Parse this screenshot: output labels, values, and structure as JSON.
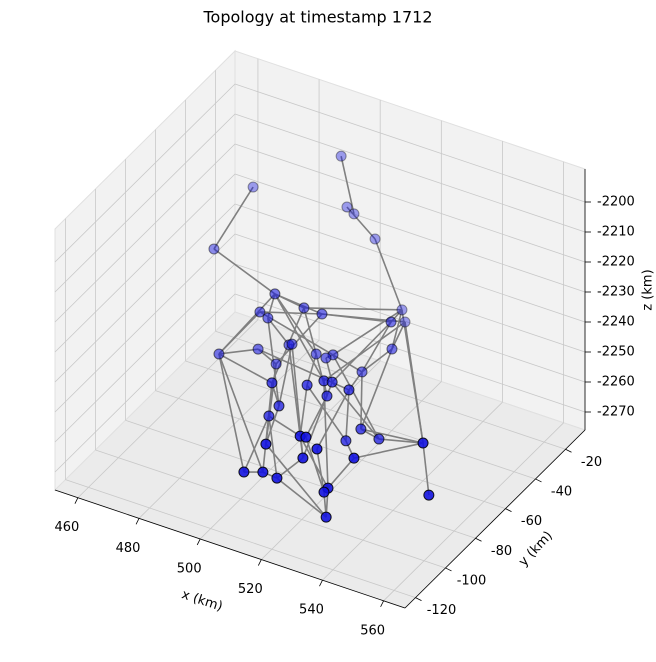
{
  "chart_data": {
    "type": "scatter3d",
    "title": "Topology at timestamp 1712",
    "x_label": "x (km)",
    "y_label": "y (km)",
    "z_label": "z (km)",
    "xlim": [
      452.5,
      567
    ],
    "ylim": [
      -127,
      -7
    ],
    "zlim": [
      -2276,
      -2189
    ],
    "xticks": [
      460,
      480,
      500,
      520,
      540,
      560
    ],
    "yticks": [
      -120,
      -100,
      -80,
      -60,
      -40,
      -20
    ],
    "zticks": [
      -2270,
      -2260,
      -2250,
      -2240,
      -2230,
      -2220,
      -2210,
      -2200
    ],
    "grid": true,
    "node_color": "#1010e0",
    "edge_color": "#808080",
    "x": [
      493.6,
      495.5,
      497.8,
      504.7,
      464.8,
      456.9,
      484.2,
      479.3,
      493.7,
      499.6,
      481.9,
      513.5,
      514.5,
      522.2,
      465.9,
      478.7,
      488.8,
      489.8,
      522.5,
      497.7,
      503.2,
      500.9,
      484.6,
      512.7,
      495.5,
      507.0,
      512.5,
      515.2,
      520.7,
      513.5,
      497.8,
      494.5,
      524.6,
      519.7,
      530.5,
      557.2,
      517.0,
      518.9,
      505.8,
      522.5,
      517.9,
      534.6,
      498.6,
      504.8,
      509.4,
      526.1,
      524.8,
      559.1,
      525.5
    ],
    "y": [
      -20,
      -20,
      -20,
      -20,
      -20,
      -30,
      -45,
      -45,
      -45,
      -45,
      -45,
      -20,
      -20,
      -45,
      -45,
      -45,
      -45,
      -45,
      -45,
      -45,
      -45,
      -45,
      -45,
      -45,
      -70,
      -70,
      -70,
      -70,
      -70,
      -70,
      -70,
      -70,
      -70,
      -70,
      -70,
      -95,
      -95,
      -95,
      -95,
      -95,
      -95,
      -95,
      -95,
      -95,
      -95,
      -95,
      -95,
      -95,
      -95
    ],
    "z": [
      -2203.5,
      -2219.8,
      -2221.3,
      -2227.3,
      -2223.7,
      -2242.1,
      -2240.3,
      -2248.0,
      -2241.7,
      -2241.7,
      -2249.1,
      -2247.9,
      -2251.6,
      -2236.6,
      -2266.6,
      -2260.6,
      -2255.7,
      -2255.1,
      -2245.5,
      -2255.7,
      -2254.1,
      -2255.9,
      -2263.5,
      -2256.5,
      -2253.7,
      -2250.5,
      -2247.2,
      -2246.7,
      -2247.4,
      -2251.9,
      -2260.6,
      -2265.1,
      -2259.1,
      -2264.7,
      -2260.4,
      -2240.2,
      -2251.7,
      -2251.4,
      -2258.2,
      -2254.1,
      -2258.7,
      -2253.0,
      -2270.0,
      -2267.9,
      -2268.3,
      -2265.9,
      -2267.7,
      -2256.9,
      -2275.8
    ],
    "edges": [
      [
        0,
        2
      ],
      [
        1,
        3
      ],
      [
        3,
        11
      ],
      [
        4,
        5
      ],
      [
        5,
        6
      ],
      [
        6,
        8
      ],
      [
        6,
        9
      ],
      [
        6,
        10
      ],
      [
        6,
        14
      ],
      [
        6,
        19
      ],
      [
        6,
        26
      ],
      [
        7,
        9
      ],
      [
        7,
        14
      ],
      [
        7,
        23
      ],
      [
        8,
        11
      ],
      [
        8,
        19
      ],
      [
        8,
        24
      ],
      [
        9,
        12
      ],
      [
        9,
        22
      ],
      [
        9,
        13
      ],
      [
        10,
        16
      ],
      [
        10,
        30
      ],
      [
        11,
        13
      ],
      [
        11,
        20
      ],
      [
        11,
        18
      ],
      [
        12,
        18
      ],
      [
        12,
        26
      ],
      [
        13,
        27
      ],
      [
        13,
        23
      ],
      [
        14,
        15
      ],
      [
        14,
        24
      ],
      [
        14,
        42
      ],
      [
        14,
        43
      ],
      [
        15,
        22
      ],
      [
        15,
        28
      ],
      [
        16,
        17
      ],
      [
        16,
        36
      ],
      [
        17,
        30
      ],
      [
        17,
        40
      ],
      [
        18,
        23
      ],
      [
        18,
        32
      ],
      [
        19,
        25
      ],
      [
        19,
        29
      ],
      [
        20,
        21
      ],
      [
        20,
        34
      ],
      [
        21,
        27
      ],
      [
        22,
        31
      ],
      [
        22,
        38
      ],
      [
        23,
        28
      ],
      [
        23,
        32
      ],
      [
        24,
        30
      ],
      [
        24,
        43
      ],
      [
        25,
        33
      ],
      [
        25,
        36
      ],
      [
        26,
        29
      ],
      [
        26,
        45
      ],
      [
        27,
        34
      ],
      [
        28,
        39
      ],
      [
        29,
        37
      ],
      [
        30,
        38
      ],
      [
        31,
        42
      ],
      [
        31,
        44
      ],
      [
        32,
        34
      ],
      [
        32,
        35
      ],
      [
        33,
        41
      ],
      [
        34,
        35
      ],
      [
        35,
        47
      ],
      [
        35,
        41
      ],
      [
        36,
        40
      ],
      [
        37,
        46
      ],
      [
        38,
        48
      ],
      [
        39,
        46
      ],
      [
        40,
        44
      ],
      [
        41,
        45
      ],
      [
        42,
        43
      ],
      [
        43,
        44
      ],
      [
        44,
        48
      ],
      [
        45,
        48
      ],
      [
        46,
        48
      ],
      [
        36,
        45
      ],
      [
        31,
        36
      ],
      [
        28,
        33
      ],
      [
        27,
        40
      ],
      [
        12,
        35
      ],
      [
        11,
        35
      ]
    ]
  }
}
